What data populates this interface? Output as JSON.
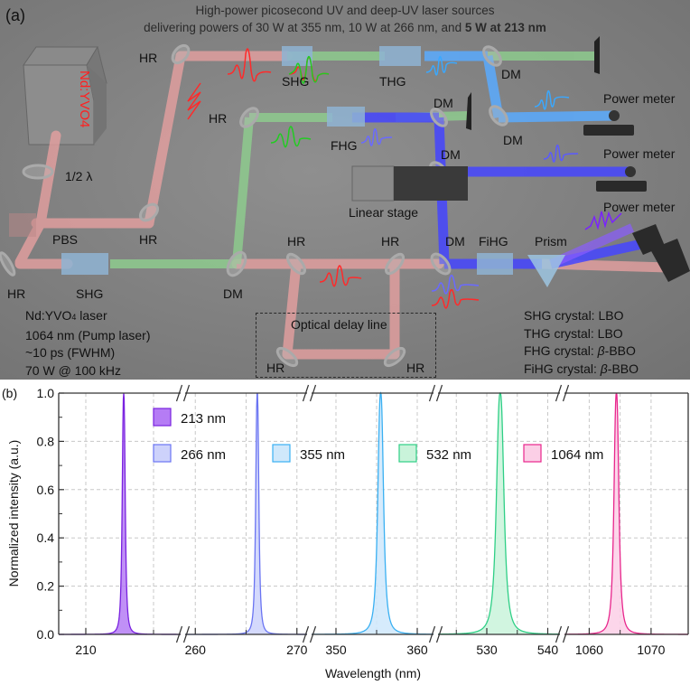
{
  "panel_a": {
    "tag": "(a)",
    "title_line1": "High-power picosecond UV and deep-UV laser sources",
    "title_line2_prefix": "delivering powers of 30 W at 355 nm, 10 W at 266 nm, and ",
    "title_line2_bold": "5 W at 213 nm",
    "laser_head_label": "Nd:YVO4",
    "labels": {
      "hr_top_left": "HR",
      "half_wave": "1/2 λ",
      "pbs": "PBS",
      "hr_pbs": "HR",
      "hr_bottom_left": "HR",
      "shg_bottom": "SHG",
      "dm_bottom": "DM",
      "hr_mid": "HR",
      "shg_top": "SHG",
      "thg": "THG",
      "dm_thg": "DM",
      "dm_top_right": "DM",
      "dm_right2": "DM",
      "fhg": "FHG",
      "dm_fhg": "DM",
      "linear_stage": "Linear stage",
      "hr_delay_in": "HR",
      "hr_delay_out": "HR",
      "dm_fihg": "DM",
      "fihg": "FiHG",
      "prism": "Prism",
      "power_meter_1": "Power meter",
      "power_meter_2": "Power meter",
      "power_meter_3": "Power meter",
      "delay_line": "Optical delay line",
      "hr_delay_bl": "HR",
      "hr_delay_br": "HR"
    },
    "pump_info": {
      "line1_pre": "Nd:YVO",
      "line1_sub": "4",
      "line1_post": " laser",
      "line2": "1064 nm (Pump laser)",
      "line3": "~10 ps (FWHM)",
      "line4": "70 W @ 100 kHz"
    },
    "crystal_info": [
      {
        "pre": "SHG crystal: ",
        "italic": "",
        "post": "LBO"
      },
      {
        "pre": "THG crystal: ",
        "italic": "",
        "post": "LBO"
      },
      {
        "pre": "FHG crystal: ",
        "italic": "β",
        "post": "-BBO"
      },
      {
        "pre": "FiHG crystal: ",
        "italic": "β",
        "post": "-BBO"
      }
    ],
    "beam_colors": {
      "ir": "#e89a9a",
      "green": "#8fd08f",
      "uv355": "#5aa8ff",
      "uv266": "#4a4aff",
      "uv213": "#7a2cff"
    }
  },
  "panel_b": {
    "tag": "(b)"
  },
  "chart_data": {
    "type": "area",
    "title": "",
    "xlabel": "Wavelength (nm)",
    "ylabel": "Normalized intensity (a.u.)",
    "ylim": [
      0,
      1.0
    ],
    "yticks": [
      "0.0",
      "0.2",
      "0.4",
      "0.6",
      "0.8",
      "1.0"
    ],
    "y_minor_step": 0.1,
    "grid": true,
    "broken_x_axis": true,
    "x_segments": [
      {
        "range": [
          208,
          217
        ],
        "ticks": [
          210
        ],
        "minor": [
          215
        ]
      },
      {
        "range": [
          259,
          271
        ],
        "ticks": [
          260,
          270
        ],
        "minor": [
          265
        ]
      },
      {
        "range": [
          347,
          362
        ],
        "ticks": [
          350,
          360
        ],
        "minor": [
          355
        ]
      },
      {
        "range": [
          522,
          542
        ],
        "ticks": [
          530,
          540
        ],
        "minor": [
          525,
          535
        ]
      },
      {
        "range": [
          1056,
          1076
        ],
        "ticks": [
          1060,
          1070
        ],
        "minor": [
          1065
        ]
      }
    ],
    "legend_placement": "top-center",
    "series": [
      {
        "name": "213 nm",
        "center": 212.8,
        "peak": 1.0,
        "fwhm": 0.25,
        "color": "#7a22e0",
        "fill": "#b57cf5"
      },
      {
        "name": "266 nm",
        "center": 266.1,
        "peak": 1.0,
        "fwhm": 0.35,
        "color": "#6a74f2",
        "fill": "#cdd2fb"
      },
      {
        "name": "355 nm",
        "center": 355.5,
        "peak": 1.0,
        "fwhm": 0.8,
        "color": "#3ab0f2",
        "fill": "#cfe8fb"
      },
      {
        "name": "532 nm",
        "center": 532.2,
        "peak": 1.0,
        "fwhm": 1.4,
        "color": "#2fcf86",
        "fill": "#c9f3da"
      },
      {
        "name": "1064 nm",
        "center": 1064.4,
        "peak": 1.0,
        "fwhm": 0.9,
        "color": "#e8268c",
        "fill": "#fbcfe6"
      }
    ]
  }
}
